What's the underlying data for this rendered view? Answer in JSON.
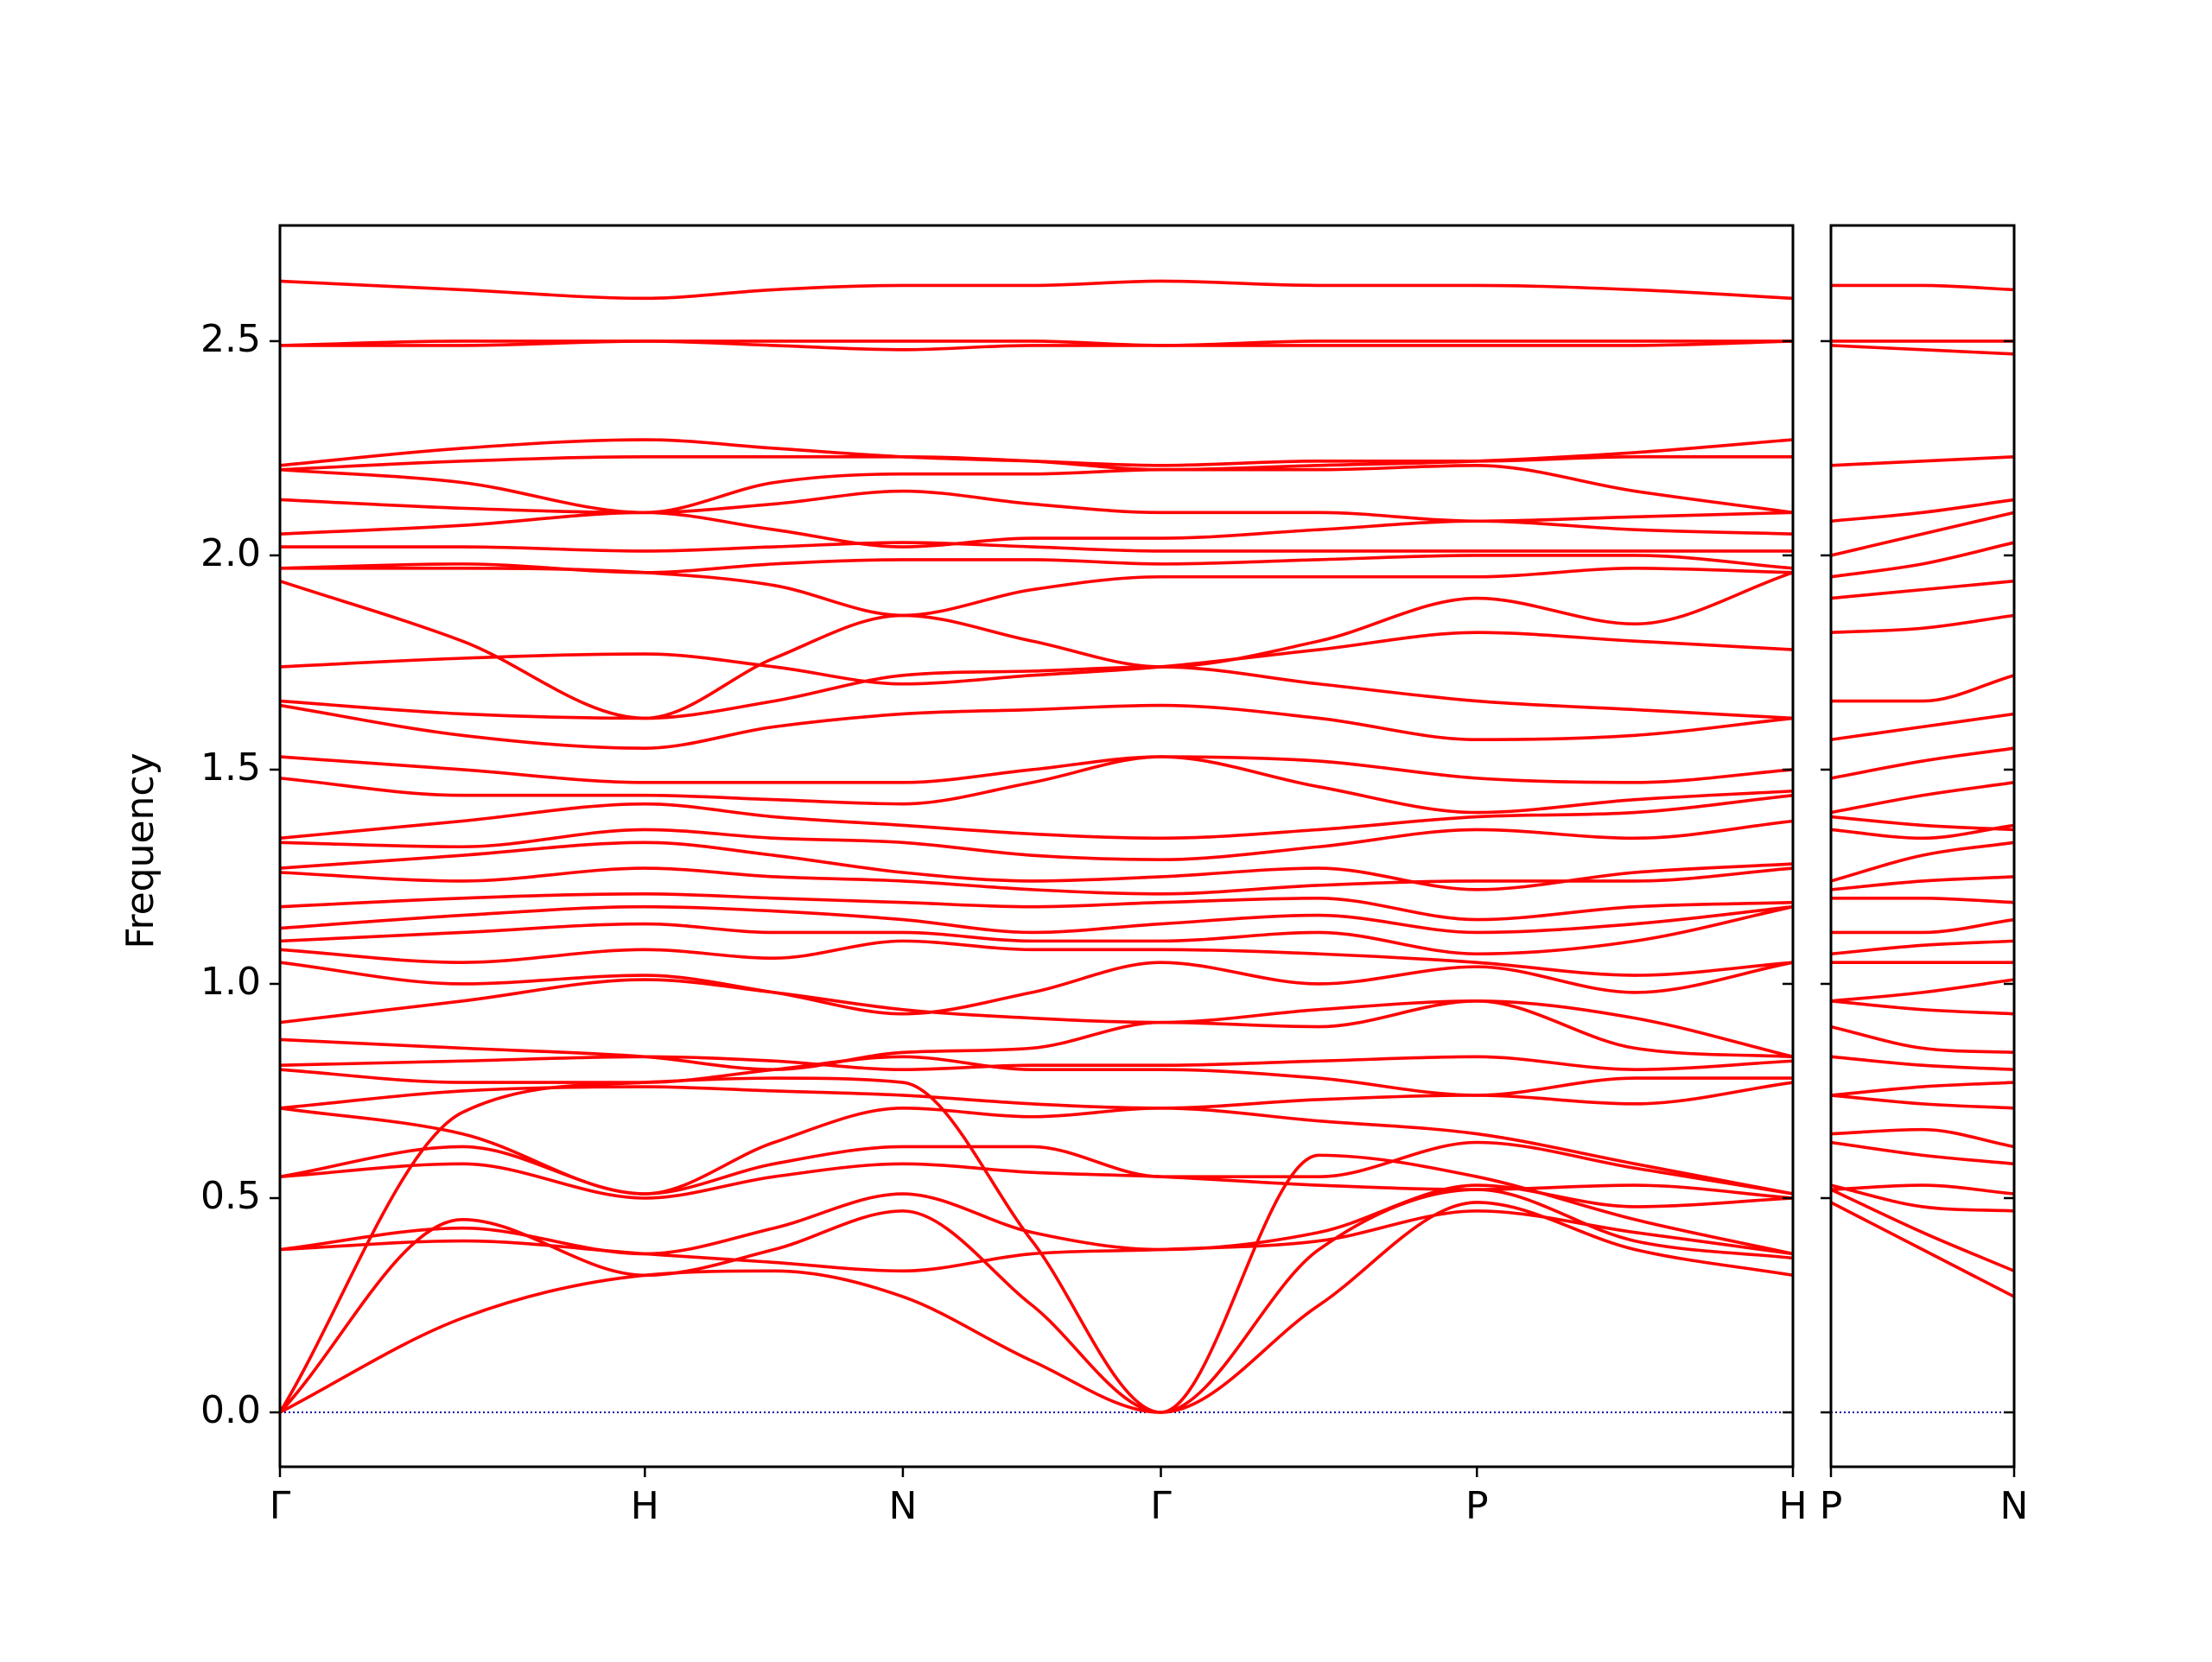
{
  "chart_data": [
    {
      "type": "line",
      "ylabel": "Frequency",
      "color": "#ff0000",
      "xlim": [
        0,
        4.146
      ],
      "ylim": [
        -0.127,
        2.77
      ],
      "xticks": [
        {
          "value": 0,
          "label": "Γ"
        },
        {
          "value": 1,
          "label": "H"
        },
        {
          "value": 1.707,
          "label": "N"
        },
        {
          "value": 2.414,
          "label": "Γ"
        },
        {
          "value": 3.28,
          "label": "P"
        },
        {
          "value": 4.146,
          "label": "H"
        }
      ],
      "yticks": [
        {
          "value": 0,
          "label": "0.0"
        },
        0.5,
        {
          "value": 1,
          "label": "1.0"
        },
        1.5,
        {
          "value": 2,
          "label": "2.0"
        },
        2.5
      ],
      "zero_line": {
        "value": 0,
        "color": "#0000aa"
      },
      "x": [
        0,
        0.5,
        1,
        1.354,
        1.707,
        2.061,
        2.414,
        2.847,
        3.28,
        3.713,
        4.146
      ],
      "series": [
        {
          "values": [
            0,
            0.22,
            0.32,
            0.33,
            0.27,
            0.12,
            0,
            0.25,
            0.49,
            0.38,
            0.32
          ]
        },
        {
          "values": [
            0,
            0.45,
            0.32,
            0.38,
            0.47,
            0.25,
            0,
            0.38,
            0.52,
            0.4,
            0.36
          ]
        },
        {
          "values": [
            0,
            0.7,
            0.77,
            0.78,
            0.77,
            0.4,
            0,
            0.6,
            0.55,
            0.45,
            0.37
          ]
        },
        {
          "values": [
            0.38,
            0.4,
            0.37,
            0.35,
            0.33,
            0.37,
            0.38,
            0.4,
            0.47,
            0.42,
            0.37
          ]
        },
        {
          "values": [
            0.38,
            0.43,
            0.37,
            0.43,
            0.51,
            0.42,
            0.38,
            0.42,
            0.53,
            0.48,
            0.5
          ]
        },
        {
          "values": [
            0.55,
            0.58,
            0.5,
            0.55,
            0.58,
            0.56,
            0.55,
            0.53,
            0.52,
            0.53,
            0.5
          ]
        },
        {
          "values": [
            0.55,
            0.62,
            0.51,
            0.58,
            0.62,
            0.62,
            0.55,
            0.55,
            0.63,
            0.57,
            0.51
          ]
        },
        {
          "values": [
            0.71,
            0.65,
            0.51,
            0.63,
            0.71,
            0.69,
            0.71,
            0.68,
            0.65,
            0.58,
            0.51
          ]
        },
        {
          "values": [
            0.71,
            0.75,
            0.76,
            0.75,
            0.74,
            0.72,
            0.71,
            0.73,
            0.74,
            0.72,
            0.77
          ]
        },
        {
          "values": [
            0.8,
            0.77,
            0.77,
            0.8,
            0.83,
            0.8,
            0.8,
            0.78,
            0.74,
            0.78,
            0.78
          ]
        },
        {
          "values": [
            0.81,
            0.82,
            0.83,
            0.82,
            0.8,
            0.81,
            0.81,
            0.82,
            0.83,
            0.8,
            0.82
          ]
        },
        {
          "values": [
            0.87,
            0.85,
            0.83,
            0.8,
            0.84,
            0.85,
            0.91,
            0.9,
            0.96,
            0.85,
            0.83
          ]
        },
        {
          "values": [
            0.91,
            0.96,
            1.01,
            0.98,
            0.94,
            0.92,
            0.91,
            0.94,
            0.96,
            0.92,
            0.83
          ]
        },
        {
          "values": [
            1.05,
            1.0,
            1.02,
            0.98,
            0.93,
            0.98,
            1.05,
            1.0,
            1.04,
            0.98,
            1.05
          ]
        },
        {
          "values": [
            1.08,
            1.05,
            1.08,
            1.06,
            1.1,
            1.08,
            1.08,
            1.07,
            1.05,
            1.02,
            1.05
          ]
        },
        {
          "values": [
            1.1,
            1.12,
            1.14,
            1.12,
            1.12,
            1.1,
            1.1,
            1.12,
            1.07,
            1.1,
            1.18
          ]
        },
        {
          "values": [
            1.13,
            1.16,
            1.18,
            1.17,
            1.15,
            1.12,
            1.14,
            1.16,
            1.12,
            1.14,
            1.18
          ]
        },
        {
          "values": [
            1.18,
            1.2,
            1.21,
            1.2,
            1.19,
            1.18,
            1.19,
            1.2,
            1.15,
            1.18,
            1.19
          ]
        },
        {
          "values": [
            1.26,
            1.24,
            1.27,
            1.25,
            1.24,
            1.22,
            1.21,
            1.23,
            1.24,
            1.24,
            1.27
          ]
        },
        {
          "values": [
            1.27,
            1.3,
            1.33,
            1.3,
            1.26,
            1.24,
            1.25,
            1.27,
            1.22,
            1.26,
            1.28
          ]
        },
        {
          "values": [
            1.33,
            1.32,
            1.36,
            1.34,
            1.33,
            1.3,
            1.29,
            1.32,
            1.36,
            1.34,
            1.38
          ]
        },
        {
          "values": [
            1.34,
            1.38,
            1.42,
            1.39,
            1.37,
            1.35,
            1.34,
            1.36,
            1.39,
            1.4,
            1.44
          ]
        },
        {
          "values": [
            1.48,
            1.44,
            1.44,
            1.43,
            1.42,
            1.47,
            1.53,
            1.46,
            1.4,
            1.43,
            1.45
          ]
        },
        {
          "values": [
            1.53,
            1.5,
            1.47,
            1.47,
            1.47,
            1.5,
            1.53,
            1.52,
            1.48,
            1.47,
            1.5
          ]
        },
        {
          "values": [
            1.65,
            1.58,
            1.55,
            1.6,
            1.63,
            1.64,
            1.65,
            1.62,
            1.57,
            1.58,
            1.62
          ]
        },
        {
          "values": [
            1.66,
            1.63,
            1.62,
            1.66,
            1.72,
            1.73,
            1.74,
            1.7,
            1.66,
            1.64,
            1.62
          ]
        },
        {
          "values": [
            1.74,
            1.76,
            1.77,
            1.74,
            1.7,
            1.72,
            1.74,
            1.78,
            1.82,
            1.8,
            1.78
          ]
        },
        {
          "values": [
            1.94,
            1.8,
            1.62,
            1.76,
            1.86,
            1.8,
            1.74,
            1.8,
            1.9,
            1.84,
            1.96
          ]
        },
        {
          "values": [
            1.97,
            1.97,
            1.96,
            1.93,
            1.86,
            1.92,
            1.95,
            1.95,
            1.95,
            1.97,
            1.96
          ]
        },
        {
          "values": [
            1.97,
            1.98,
            1.96,
            1.98,
            1.99,
            1.99,
            1.98,
            1.99,
            2.0,
            2.0,
            1.97
          ]
        },
        {
          "values": [
            2.02,
            2.02,
            2.01,
            2.02,
            2.03,
            2.02,
            2.01,
            2.01,
            2.01,
            2.01,
            2.01
          ]
        },
        {
          "values": [
            2.05,
            2.07,
            2.1,
            2.06,
            2.02,
            2.04,
            2.04,
            2.06,
            2.08,
            2.06,
            2.05
          ]
        },
        {
          "values": [
            2.13,
            2.11,
            2.1,
            2.12,
            2.15,
            2.12,
            2.1,
            2.1,
            2.08,
            2.09,
            2.1
          ]
        },
        {
          "values": [
            2.2,
            2.17,
            2.1,
            2.17,
            2.19,
            2.19,
            2.2,
            2.2,
            2.21,
            2.15,
            2.1
          ]
        },
        {
          "values": [
            2.2,
            2.22,
            2.23,
            2.23,
            2.23,
            2.22,
            2.2,
            2.21,
            2.22,
            2.24,
            2.27
          ]
        },
        {
          "values": [
            2.21,
            2.25,
            2.27,
            2.25,
            2.23,
            2.22,
            2.21,
            2.22,
            2.22,
            2.23,
            2.23
          ]
        },
        {
          "values": [
            2.49,
            2.49,
            2.5,
            2.49,
            2.48,
            2.49,
            2.49,
            2.49,
            2.49,
            2.49,
            2.5
          ]
        },
        {
          "values": [
            2.49,
            2.5,
            2.5,
            2.5,
            2.5,
            2.5,
            2.49,
            2.5,
            2.5,
            2.5,
            2.5
          ]
        },
        {
          "values": [
            2.64,
            2.62,
            2.6,
            2.62,
            2.63,
            2.63,
            2.64,
            2.63,
            2.63,
            2.62,
            2.6
          ]
        }
      ]
    },
    {
      "type": "line",
      "color": "#ff0000",
      "show_ytick_labels": false,
      "xlim": [
        0,
        0.5
      ],
      "ylim": [
        -0.127,
        2.77
      ],
      "xticks": [
        {
          "value": 0,
          "label": "P"
        },
        {
          "value": 0.5,
          "label": "N"
        }
      ],
      "yticks": [
        0,
        0.5,
        1,
        1.5,
        2,
        2.5
      ],
      "zero_line": {
        "value": 0,
        "color": "#0000aa"
      },
      "x": [
        0,
        0.25,
        0.5
      ],
      "series": [
        {
          "values": [
            0.49,
            0.38,
            0.27
          ]
        },
        {
          "values": [
            0.52,
            0.42,
            0.33
          ]
        },
        {
          "values": [
            0.53,
            0.48,
            0.47
          ]
        },
        {
          "values": [
            0.52,
            0.53,
            0.51
          ]
        },
        {
          "values": [
            0.63,
            0.6,
            0.58
          ]
        },
        {
          "values": [
            0.65,
            0.66,
            0.62
          ]
        },
        {
          "values": [
            0.74,
            0.72,
            0.71
          ]
        },
        {
          "values": [
            0.74,
            0.76,
            0.77
          ]
        },
        {
          "values": [
            0.83,
            0.81,
            0.8
          ]
        },
        {
          "values": [
            0.9,
            0.85,
            0.84
          ]
        },
        {
          "values": [
            0.96,
            0.94,
            0.93
          ]
        },
        {
          "values": [
            0.96,
            0.98,
            1.01
          ]
        },
        {
          "values": [
            1.05,
            1.05,
            1.05
          ]
        },
        {
          "values": [
            1.07,
            1.09,
            1.1
          ]
        },
        {
          "values": [
            1.12,
            1.12,
            1.15
          ]
        },
        {
          "values": [
            1.2,
            1.2,
            1.19
          ]
        },
        {
          "values": [
            1.22,
            1.24,
            1.25
          ]
        },
        {
          "values": [
            1.24,
            1.3,
            1.33
          ]
        },
        {
          "values": [
            1.36,
            1.34,
            1.37
          ]
        },
        {
          "values": [
            1.39,
            1.37,
            1.36
          ]
        },
        {
          "values": [
            1.4,
            1.44,
            1.47
          ]
        },
        {
          "values": [
            1.48,
            1.52,
            1.55
          ]
        },
        {
          "values": [
            1.57,
            1.6,
            1.63
          ]
        },
        {
          "values": [
            1.66,
            1.66,
            1.72
          ]
        },
        {
          "values": [
            1.82,
            1.83,
            1.86
          ]
        },
        {
          "values": [
            1.9,
            1.92,
            1.94
          ]
        },
        {
          "values": [
            1.95,
            1.98,
            2.03
          ]
        },
        {
          "values": [
            2.0,
            2.05,
            2.1
          ]
        },
        {
          "values": [
            2.08,
            2.1,
            2.13
          ]
        },
        {
          "values": [
            2.21,
            2.22,
            2.23
          ]
        },
        {
          "values": [
            2.49,
            2.48,
            2.47
          ]
        },
        {
          "values": [
            2.5,
            2.5,
            2.5
          ]
        },
        {
          "values": [
            2.63,
            2.63,
            2.62
          ]
        }
      ]
    }
  ]
}
